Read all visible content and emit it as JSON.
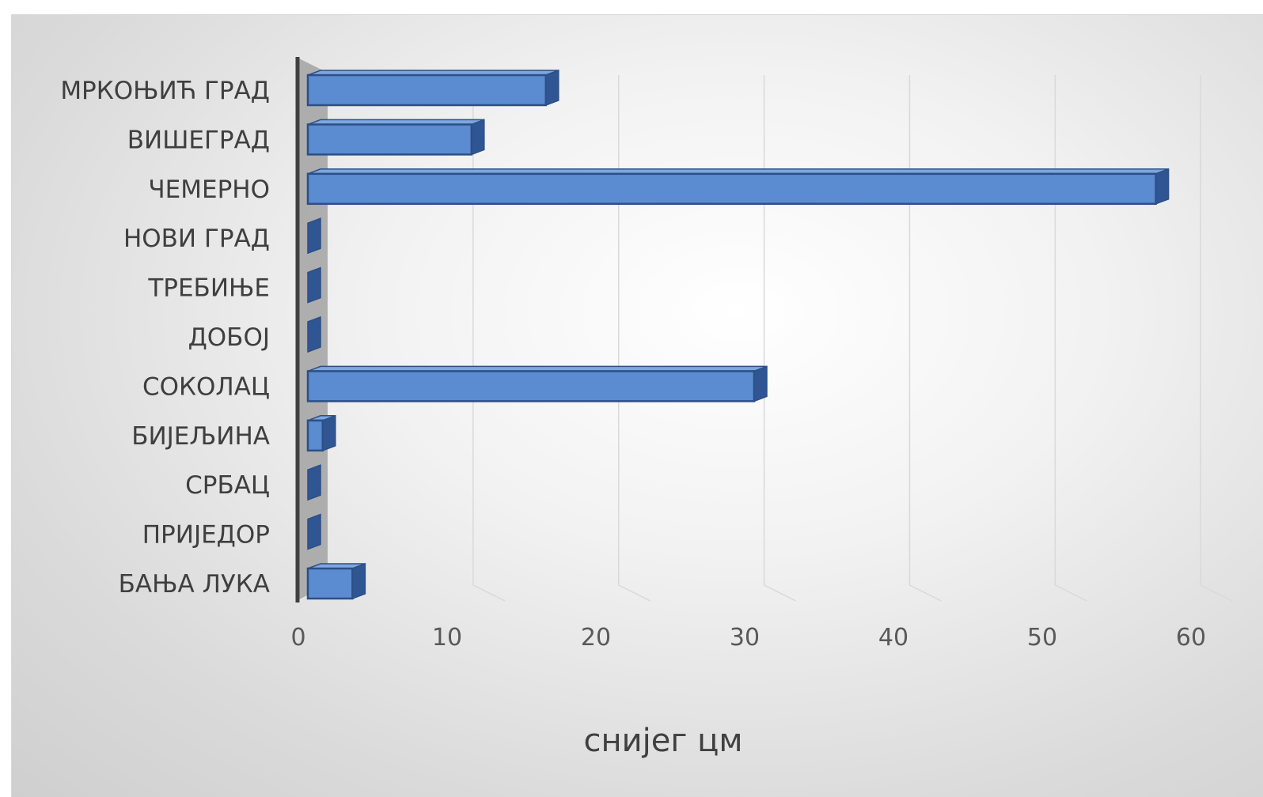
{
  "chart_data": {
    "type": "bar",
    "orientation": "horizontal",
    "style": "3d-clustered",
    "categories": [
      "МРКОЊИЋ ГРАД",
      "ВИШЕГРАД",
      "ЧЕМЕРНО",
      "НОВИ ГРАД",
      "ТРЕБИЊЕ",
      "ДОБОЈ",
      "СОКОЛАЦ",
      "БИЈЕЉИНА",
      "СРБАЦ",
      "ПРИЈЕДОР",
      "БАЊА ЛУКА"
    ],
    "values": [
      16,
      11,
      57,
      0,
      0,
      0,
      30,
      1,
      0,
      0,
      3
    ],
    "xlabel": "снијег цм",
    "ylabel": "",
    "xlim": [
      0,
      60
    ],
    "ticks": [
      "0",
      "10",
      "20",
      "30",
      "40",
      "50",
      "60"
    ],
    "grid": true,
    "legend": "none",
    "colors": {
      "bar_front": "#5b8bd0",
      "bar_top": "#7ea7e0",
      "bar_side": "#2f5593",
      "bar_edge": "#2c4f86",
      "axis_wall": "#a6a6a6",
      "axis_line": "#404040",
      "gridline": "#d9d9d9"
    }
  }
}
